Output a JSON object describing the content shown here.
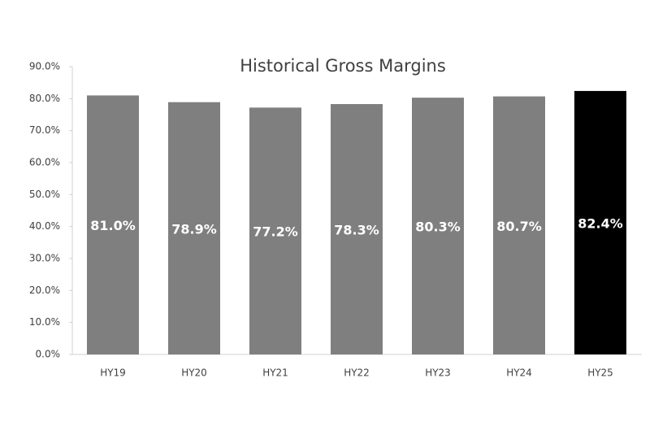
{
  "chart_data": {
    "type": "bar",
    "title": "Historical Gross Margins",
    "categories": [
      "HY19",
      "HY20",
      "HY21",
      "HY22",
      "HY23",
      "HY24",
      "HY25"
    ],
    "values": [
      81.0,
      78.9,
      77.2,
      78.3,
      80.3,
      80.7,
      82.4
    ],
    "value_labels": [
      "81.0%",
      "78.9%",
      "77.2%",
      "78.3%",
      "80.3%",
      "80.7%",
      "82.4%"
    ],
    "colors": [
      "#7f7f7f",
      "#7f7f7f",
      "#7f7f7f",
      "#7f7f7f",
      "#7f7f7f",
      "#7f7f7f",
      "#000000"
    ],
    "ylim": [
      0,
      90
    ],
    "yticks": [
      {
        "value": 0,
        "label": "0.0%"
      },
      {
        "value": 10,
        "label": "10.0%"
      },
      {
        "value": 20,
        "label": "20.0%"
      },
      {
        "value": 30,
        "label": "30.0%"
      },
      {
        "value": 40,
        "label": "40.0%"
      },
      {
        "value": 50,
        "label": "50.0%"
      },
      {
        "value": 60,
        "label": "60.0%"
      },
      {
        "value": 70,
        "label": "70.0%"
      },
      {
        "value": 80,
        "label": "80.0%"
      },
      {
        "value": 90,
        "label": "90.0%"
      }
    ],
    "grid": false
  }
}
